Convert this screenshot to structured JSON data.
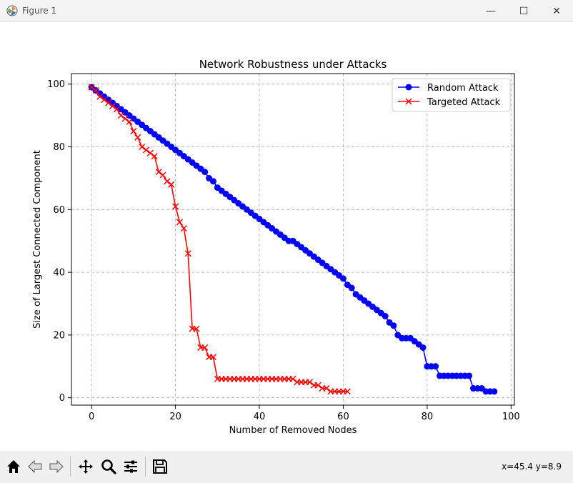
{
  "window": {
    "title": "Figure 1",
    "minimize_glyph": "—",
    "maximize_glyph": "☐",
    "close_glyph": "✕"
  },
  "toolbar": {
    "buttons": [
      "home",
      "back",
      "forward",
      "pan",
      "zoom",
      "configure-subplots",
      "save"
    ],
    "coords": "x=45.4 y=8.9"
  },
  "colors": {
    "random": "#0000ff",
    "targeted": "#ff0000",
    "grid": "#b0b0b0"
  },
  "chart_data": {
    "type": "line",
    "title": "Network Robustness under Attacks",
    "xlabel": "Number of Removed Nodes",
    "ylabel": "Size of Largest Connected Component",
    "xlim": [
      -4.8,
      100.8
    ],
    "ylim": [
      -2.35,
      103.35
    ],
    "xticks": [
      0,
      20,
      40,
      60,
      80,
      100
    ],
    "yticks": [
      0,
      20,
      40,
      60,
      80,
      100
    ],
    "grid": true,
    "legend_position": "upper right",
    "series": [
      {
        "name": "Random Attack",
        "color": "#0000ff",
        "marker": "circle",
        "x": [
          0,
          1,
          2,
          3,
          4,
          5,
          6,
          7,
          8,
          9,
          10,
          11,
          12,
          13,
          14,
          15,
          16,
          17,
          18,
          19,
          20,
          21,
          22,
          23,
          24,
          25,
          26,
          27,
          28,
          29,
          30,
          31,
          32,
          33,
          34,
          35,
          36,
          37,
          38,
          39,
          40,
          41,
          42,
          43,
          44,
          45,
          46,
          47,
          48,
          49,
          50,
          51,
          52,
          53,
          54,
          55,
          56,
          57,
          58,
          59,
          60,
          61,
          62,
          63,
          64,
          65,
          66,
          67,
          68,
          69,
          70,
          71,
          72,
          73,
          74,
          75,
          76,
          77,
          78,
          79,
          80,
          81,
          82,
          83,
          84,
          85,
          86,
          87,
          88,
          89,
          90,
          91,
          92,
          93,
          94,
          95,
          96
        ],
        "values": [
          99,
          98,
          97,
          96,
          95,
          94,
          93,
          92,
          91,
          90,
          89,
          88,
          87,
          86,
          85,
          84,
          83,
          82,
          81,
          80,
          79,
          78,
          77,
          76,
          75,
          74,
          73,
          72,
          70,
          69,
          67,
          66,
          65,
          64,
          63,
          62,
          61,
          60,
          59,
          58,
          57,
          56,
          55,
          54,
          53,
          52,
          51,
          50,
          50,
          49,
          48,
          47,
          46,
          45,
          44,
          43,
          42,
          41,
          40,
          39,
          38,
          36,
          35,
          33,
          32,
          31,
          30,
          29,
          28,
          27,
          26,
          24,
          23,
          20,
          19,
          19,
          19,
          18,
          17,
          16,
          10,
          10,
          10,
          7,
          7,
          7,
          7,
          7,
          7,
          7,
          7,
          3,
          3,
          3,
          2,
          2,
          2
        ]
      },
      {
        "name": "Targeted Attack",
        "color": "#ff0000",
        "marker": "x",
        "x": [
          0,
          1,
          2,
          3,
          4,
          5,
          6,
          7,
          8,
          9,
          10,
          11,
          12,
          13,
          14,
          15,
          16,
          17,
          18,
          19,
          20,
          21,
          22,
          23,
          24,
          25,
          26,
          27,
          28,
          29,
          30,
          31,
          32,
          33,
          34,
          35,
          36,
          37,
          38,
          39,
          40,
          41,
          42,
          43,
          44,
          45,
          46,
          47,
          48,
          49,
          50,
          51,
          52,
          53,
          54,
          55,
          56,
          57,
          58,
          59,
          60,
          61
        ],
        "values": [
          99,
          98,
          96,
          95,
          94,
          93,
          92,
          90,
          89,
          88,
          85,
          83,
          80,
          79,
          78,
          77,
          72,
          71,
          69,
          68,
          61,
          56,
          54,
          46,
          22,
          22,
          16,
          16,
          13,
          13,
          6,
          6,
          6,
          6,
          6,
          6,
          6,
          6,
          6,
          6,
          6,
          6,
          6,
          6,
          6,
          6,
          6,
          6,
          6,
          5,
          5,
          5,
          5,
          4,
          4,
          3,
          3,
          2,
          2,
          2,
          2,
          2
        ]
      }
    ]
  }
}
